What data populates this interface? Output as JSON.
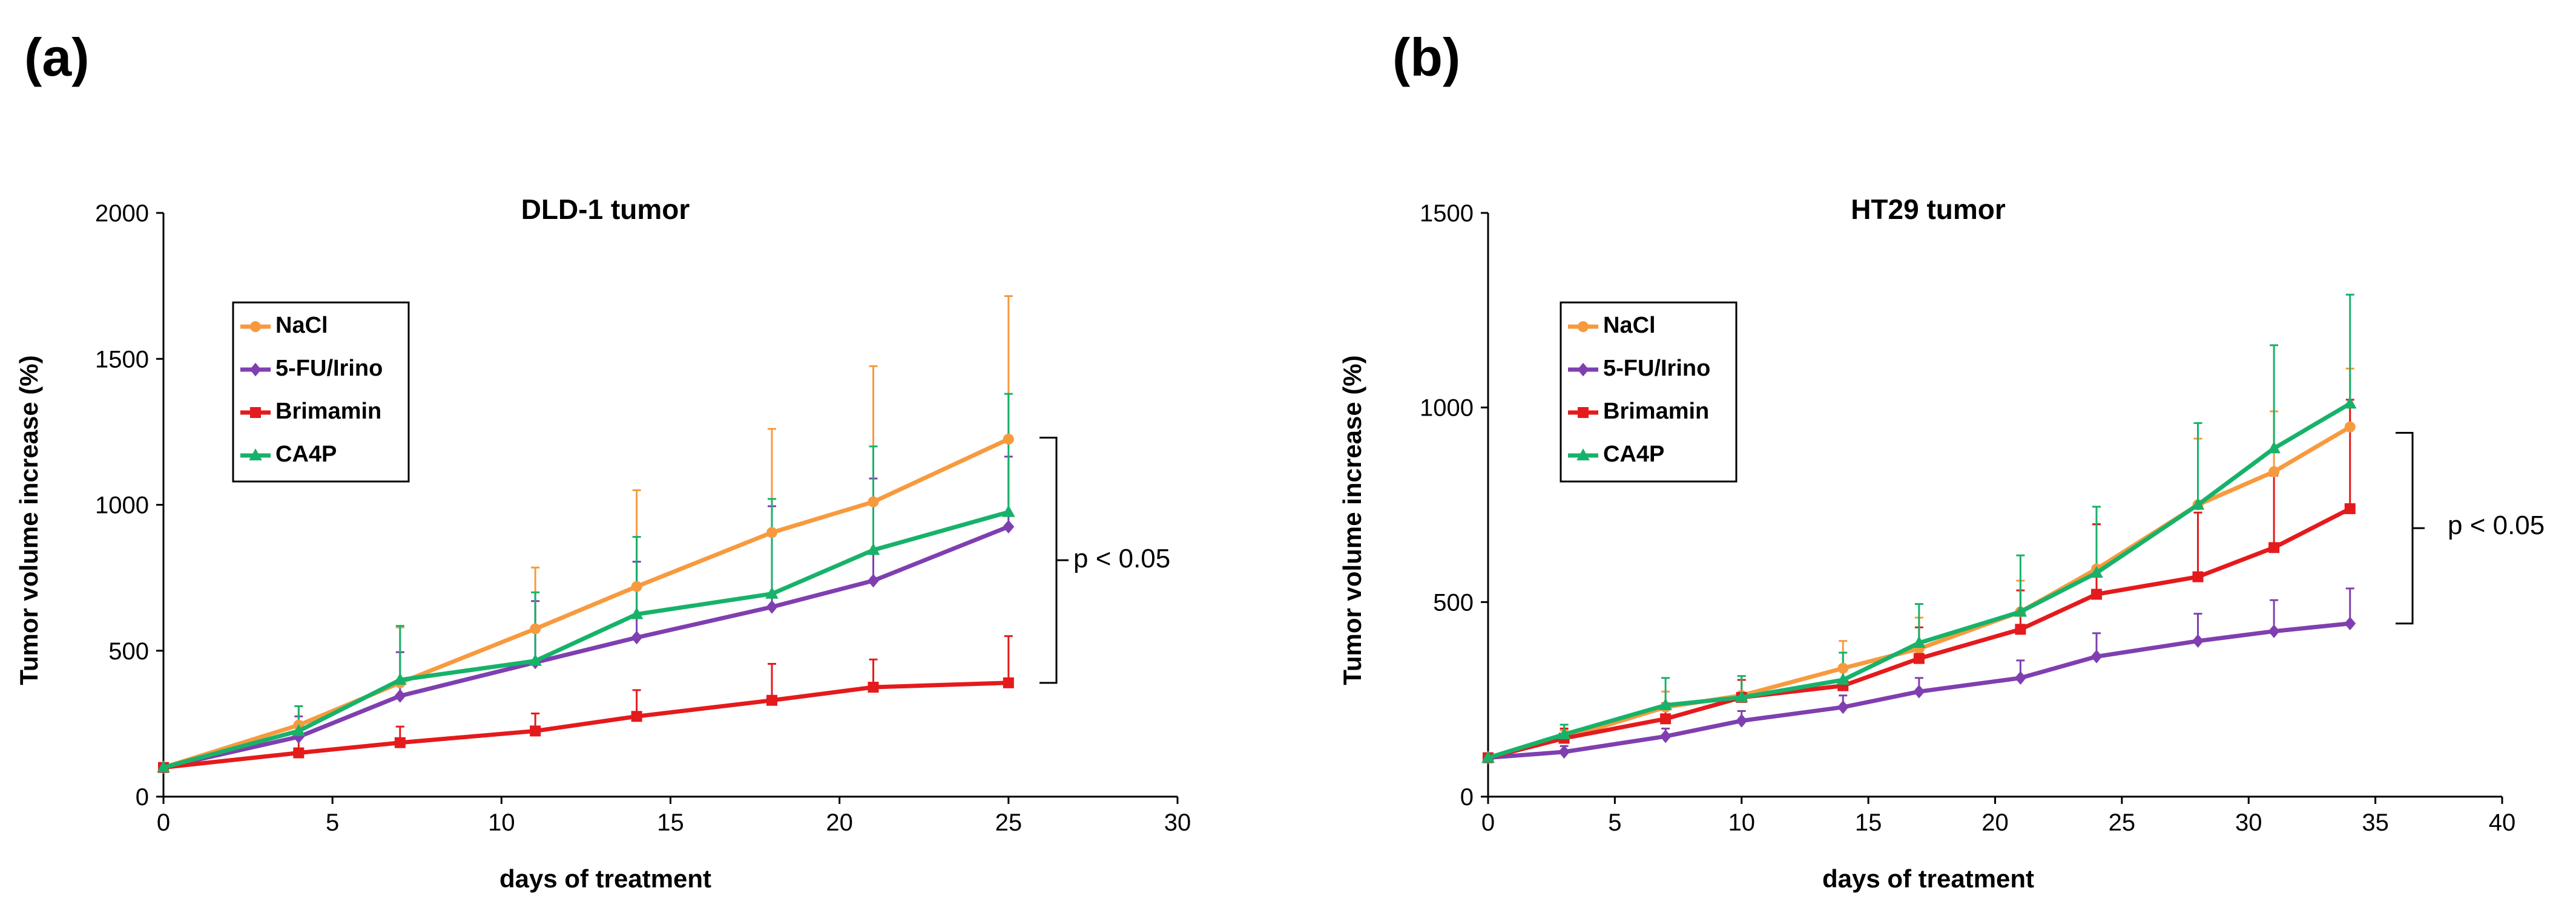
{
  "colors": {
    "NaCl": "#F79A3E",
    "5-FU/Irino": "#7F3FB0",
    "Brimamin": "#E41A1C",
    "CA4P": "#17B26A"
  },
  "chart_data": [
    {
      "panel": "(a)",
      "type": "line",
      "title": "DLD-1 tumor",
      "xlabel": "days of treatment",
      "ylabel": "Tumor volume increase (%)",
      "xlim": [
        0,
        30
      ],
      "xticks": [
        0,
        5,
        10,
        15,
        20,
        25,
        30
      ],
      "ylim": [
        0,
        2000
      ],
      "yticks": [
        0,
        500,
        1000,
        1500,
        2000
      ],
      "legend": {
        "position": "upper-left"
      },
      "annotation": "p < 0.05",
      "annotation_span": [
        390,
        1230
      ],
      "series": [
        {
          "name": "NaCl",
          "marker": "circle",
          "x": [
            0,
            4,
            7,
            11,
            14,
            18,
            21,
            25
          ],
          "y": [
            100,
            245,
            390,
            575,
            720,
            905,
            1010,
            1225
          ],
          "err": [
            0,
            65,
            190,
            210,
            330,
            355,
            465,
            490
          ]
        },
        {
          "name": "5-FU/Irino",
          "marker": "diamond",
          "x": [
            0,
            4,
            7,
            11,
            14,
            18,
            21,
            25
          ],
          "y": [
            100,
            205,
            345,
            460,
            545,
            650,
            740,
            925
          ],
          "err": [
            0,
            70,
            150,
            210,
            260,
            345,
            350,
            240
          ]
        },
        {
          "name": "Brimamin",
          "marker": "square",
          "x": [
            0,
            4,
            7,
            11,
            14,
            18,
            21,
            25
          ],
          "y": [
            100,
            150,
            185,
            225,
            275,
            330,
            375,
            390
          ],
          "err": [
            0,
            70,
            55,
            60,
            90,
            125,
            95,
            160
          ]
        },
        {
          "name": "CA4P",
          "marker": "triangle",
          "x": [
            0,
            4,
            7,
            11,
            14,
            18,
            21,
            25
          ],
          "y": [
            100,
            225,
            400,
            465,
            625,
            695,
            845,
            975
          ],
          "err": [
            0,
            85,
            185,
            235,
            265,
            325,
            355,
            405
          ]
        }
      ]
    },
    {
      "panel": "(b)",
      "type": "line",
      "title": "HT29 tumor",
      "xlabel": "days of treatment",
      "ylabel": "Tumor volume increase (%)",
      "xlim": [
        0,
        40
      ],
      "xticks": [
        0,
        5,
        10,
        15,
        20,
        25,
        30,
        35,
        40
      ],
      "ylim": [
        0,
        1500
      ],
      "yticks": [
        0,
        500,
        1000,
        1500
      ],
      "legend": {
        "position": "upper-left"
      },
      "annotation": "p < 0.05",
      "annotation_span": [
        445,
        935
      ],
      "series": [
        {
          "name": "NaCl",
          "marker": "circle",
          "x": [
            0,
            3,
            7,
            10,
            14,
            17,
            21,
            24,
            28,
            31,
            34
          ],
          "y": [
            100,
            150,
            230,
            260,
            330,
            380,
            475,
            585,
            750,
            835,
            950
          ],
          "err": [
            0,
            20,
            40,
            40,
            70,
            80,
            80,
            115,
            170,
            155,
            150
          ]
        },
        {
          "name": "5-FU/Irino",
          "marker": "diamond",
          "x": [
            0,
            3,
            7,
            10,
            14,
            17,
            21,
            24,
            28,
            31,
            34
          ],
          "y": [
            100,
            115,
            155,
            195,
            230,
            270,
            305,
            360,
            400,
            425,
            445
          ],
          "err": [
            0,
            15,
            20,
            25,
            30,
            35,
            45,
            60,
            70,
            80,
            90
          ]
        },
        {
          "name": "Brimamin",
          "marker": "square",
          "x": [
            0,
            3,
            7,
            10,
            14,
            17,
            21,
            24,
            28,
            31,
            34
          ],
          "y": [
            100,
            150,
            200,
            255,
            285,
            355,
            430,
            520,
            565,
            640,
            740
          ],
          "err": [
            0,
            25,
            40,
            45,
            50,
            80,
            100,
            180,
            165,
            185,
            280
          ]
        },
        {
          "name": "CA4P",
          "marker": "triangle",
          "x": [
            0,
            3,
            7,
            10,
            14,
            17,
            21,
            24,
            28,
            31,
            34
          ],
          "y": [
            100,
            160,
            235,
            255,
            300,
            395,
            475,
            575,
            750,
            895,
            1010
          ],
          "err": [
            0,
            25,
            70,
            55,
            70,
            100,
            145,
            170,
            210,
            265,
            280
          ]
        }
      ]
    }
  ]
}
